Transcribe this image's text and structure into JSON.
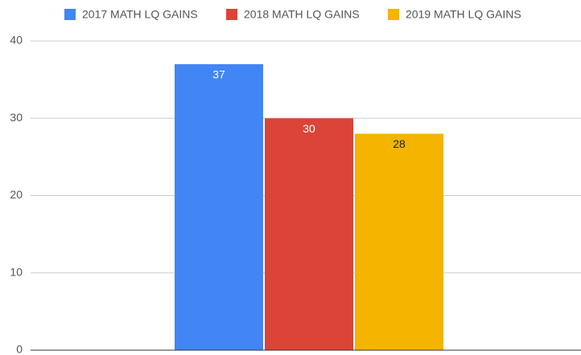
{
  "chart_data": {
    "type": "bar",
    "categories": [
      null
    ],
    "series": [
      {
        "name": "2017 MATH LQ GAINS",
        "color": "#4285f4",
        "label_color": "#ffffff",
        "values": [
          37
        ]
      },
      {
        "name": "2018 MATH LQ GAINS",
        "color": "#db4437",
        "label_color": "#ffffff",
        "values": [
          30
        ]
      },
      {
        "name": "2019 MATH LQ GAINS",
        "color": "#f4b400",
        "label_color": "#222222",
        "values": [
          28
        ]
      }
    ],
    "ylim": [
      0,
      40
    ],
    "yticks": [
      0,
      10,
      20,
      30,
      40
    ],
    "grid": true,
    "legend": "top"
  }
}
